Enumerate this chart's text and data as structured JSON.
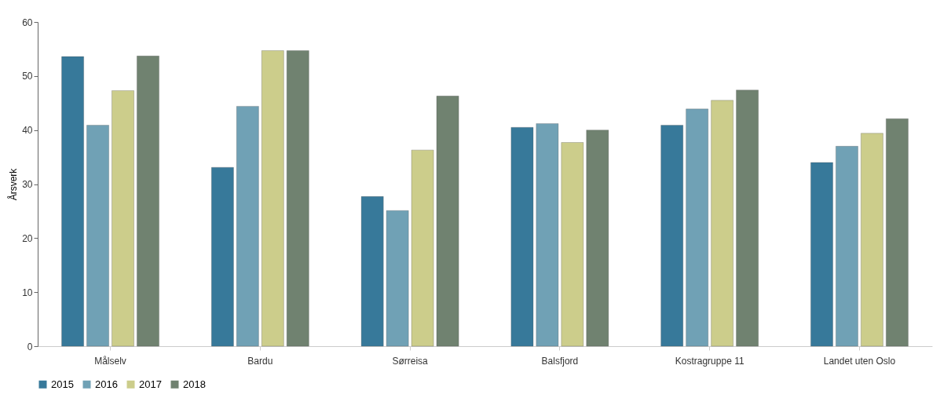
{
  "chart_data": {
    "type": "bar",
    "ylabel": "Årsverk",
    "categories": [
      "Målselv",
      "Bardu",
      "Sørreisa",
      "Balsfjord",
      "Kostragruppe 11",
      "Landet uten Oslo"
    ],
    "series": [
      {
        "name": "2015",
        "color": "#37799a",
        "values": [
          53.6,
          33.1,
          27.7,
          40.5,
          40.9,
          34.0
        ]
      },
      {
        "name": "2016",
        "color": "#70a1b5",
        "values": [
          40.9,
          44.4,
          25.1,
          41.2,
          43.9,
          37.0
        ]
      },
      {
        "name": "2017",
        "color": "#cccd8b",
        "values": [
          47.3,
          54.7,
          36.3,
          37.7,
          45.5,
          39.4
        ]
      },
      {
        "name": "2018",
        "color": "#708270",
        "values": [
          53.7,
          54.7,
          46.3,
          40.0,
          47.4,
          42.1
        ]
      }
    ],
    "ylim": [
      0,
      60
    ],
    "yticks": [
      0,
      10,
      20,
      30,
      40,
      50,
      60
    ],
    "grid": false,
    "legend": "bottom"
  }
}
